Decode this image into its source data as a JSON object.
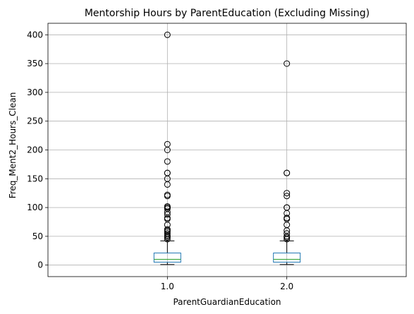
{
  "chart_data": {
    "type": "box",
    "title": "Mentorship Hours by ParentEducation (Excluding Missing)",
    "xlabel": "ParentGuardianEducation",
    "ylabel": "Freq_Ment2_Hours_Clean",
    "categories": [
      "1.0",
      "2.0"
    ],
    "ylim": [
      -20,
      420
    ],
    "yticks": [
      0,
      50,
      100,
      150,
      200,
      250,
      300,
      350,
      400
    ],
    "grid": true,
    "series": [
      {
        "category": "1.0",
        "whisker_low": 1,
        "q1": 5,
        "median": 10,
        "q3": 21,
        "whisker_high": 42,
        "outliers": [
          45,
          48,
          50,
          52,
          55,
          58,
          60,
          62,
          70,
          80,
          82,
          88,
          92,
          98,
          100,
          100,
          102,
          120,
          122,
          140,
          150,
          160,
          160,
          180,
          200,
          210,
          400
        ]
      },
      {
        "category": "2.0",
        "whisker_low": 1,
        "q1": 5,
        "median": 10,
        "q3": 21,
        "whisker_high": 42,
        "outliers": [
          45,
          48,
          50,
          55,
          60,
          70,
          80,
          82,
          90,
          100,
          100,
          120,
          125,
          160,
          160,
          350
        ]
      }
    ],
    "colors": {
      "box": "#1f77b4",
      "median": "#2ca02c",
      "whisker": "#000000",
      "grid": "#b0b0b0"
    }
  }
}
